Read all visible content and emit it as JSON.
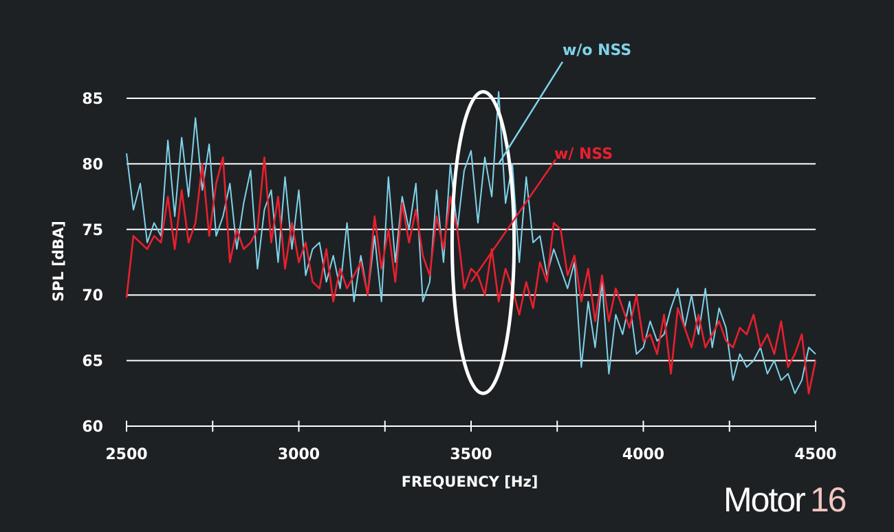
{
  "chart_data": {
    "type": "line",
    "xlabel": "FREQUENCY [Hz]",
    "ylabel": "SPL [dBA]",
    "xlim": [
      2500,
      4500
    ],
    "ylim": [
      60,
      85
    ],
    "x_ticks": [
      "2500",
      "3000",
      "3500",
      "4000",
      "4500"
    ],
    "y_ticks": [
      "60",
      "65",
      "70",
      "75",
      "80",
      "85"
    ],
    "grid": "horizontal",
    "x": [
      2500,
      2520,
      2540,
      2560,
      2580,
      2600,
      2620,
      2640,
      2660,
      2680,
      2700,
      2720,
      2740,
      2760,
      2780,
      2800,
      2820,
      2840,
      2860,
      2880,
      2900,
      2920,
      2940,
      2960,
      2980,
      3000,
      3020,
      3040,
      3060,
      3080,
      3100,
      3120,
      3140,
      3160,
      3180,
      3200,
      3220,
      3240,
      3260,
      3280,
      3300,
      3320,
      3340,
      3360,
      3380,
      3400,
      3420,
      3440,
      3460,
      3480,
      3500,
      3520,
      3540,
      3560,
      3580,
      3600,
      3620,
      3640,
      3660,
      3680,
      3700,
      3720,
      3740,
      3760,
      3780,
      3800,
      3820,
      3840,
      3860,
      3880,
      3900,
      3920,
      3940,
      3960,
      3980,
      4000,
      4020,
      4040,
      4060,
      4080,
      4100,
      4120,
      4140,
      4160,
      4180,
      4200,
      4220,
      4240,
      4260,
      4280,
      4300,
      4320,
      4340,
      4360,
      4380,
      4400,
      4420,
      4440,
      4460,
      4480,
      4500
    ],
    "series": [
      {
        "name": "w/o NSS",
        "color": "#7fd3ea",
        "values": [
          80.8,
          76.5,
          78.5,
          74.0,
          75.5,
          74.5,
          81.8,
          76.0,
          82.0,
          77.5,
          83.5,
          78.0,
          81.5,
          74.5,
          76.0,
          78.5,
          73.5,
          77.0,
          79.5,
          72.0,
          76.5,
          78.0,
          72.5,
          79.0,
          73.5,
          78.0,
          71.5,
          73.5,
          74.0,
          71.0,
          73.0,
          70.5,
          75.5,
          69.5,
          73.0,
          70.0,
          74.5,
          69.5,
          79.0,
          72.5,
          77.5,
          75.0,
          78.5,
          69.5,
          71.0,
          78.0,
          72.5,
          80.0,
          75.0,
          79.5,
          81.0,
          75.5,
          80.5,
          77.5,
          85.5,
          77.0,
          80.0,
          72.5,
          79.0,
          74.0,
          74.5,
          71.5,
          73.5,
          72.0,
          70.5,
          72.5,
          64.5,
          69.5,
          66.0,
          71.0,
          64.0,
          68.5,
          67.0,
          69.5,
          65.5,
          66.0,
          68.0,
          66.5,
          67.0,
          69.0,
          70.5,
          67.5,
          70.0,
          67.0,
          70.5,
          66.0,
          69.0,
          67.5,
          63.5,
          65.5,
          64.5,
          65.0,
          66.0,
          64.0,
          65.0,
          63.5,
          64.0,
          62.5,
          63.5,
          66.0,
          65.5
        ]
      },
      {
        "name": "w/ NSS",
        "color": "#e8202e",
        "values": [
          69.8,
          74.5,
          74.0,
          73.5,
          74.5,
          74.0,
          77.5,
          73.5,
          78.0,
          74.0,
          75.5,
          80.0,
          74.5,
          78.5,
          80.5,
          72.5,
          75.0,
          73.5,
          74.0,
          75.0,
          80.5,
          74.0,
          77.5,
          72.0,
          75.5,
          72.5,
          74.0,
          71.0,
          70.5,
          73.5,
          69.5,
          72.0,
          70.5,
          71.5,
          72.5,
          70.0,
          76.0,
          72.0,
          75.0,
          71.0,
          77.0,
          74.0,
          76.5,
          73.0,
          71.5,
          76.0,
          73.5,
          77.5,
          75.0,
          70.5,
          72.0,
          71.5,
          70.0,
          73.5,
          69.5,
          72.0,
          70.5,
          68.5,
          71.0,
          69.0,
          72.5,
          71.0,
          75.5,
          75.0,
          71.5,
          73.0,
          69.5,
          72.0,
          68.0,
          71.5,
          68.0,
          70.5,
          69.0,
          67.5,
          70.0,
          66.5,
          67.0,
          65.5,
          68.5,
          64.0,
          69.0,
          67.5,
          66.0,
          68.5,
          66.0,
          67.0,
          68.0,
          66.5,
          66.0,
          67.5,
          67.0,
          68.5,
          66.0,
          67.0,
          65.5,
          68.0,
          64.5,
          65.5,
          67.0,
          62.5,
          65.0
        ]
      }
    ],
    "annotations": [
      {
        "text": "w/o NSS",
        "color": "#7fd3ea",
        "target": [
          3580,
          80
        ]
      },
      {
        "text": "w/ NSS",
        "color": "#e8202e",
        "target": [
          3500,
          71
        ]
      }
    ],
    "highlight": {
      "shape": "ellipse",
      "center": [
        3535,
        74
      ],
      "rx": 90,
      "ry": 11.5,
      "color": "#ffffff"
    }
  },
  "brand": {
    "word": "Motor",
    "number": "16"
  }
}
